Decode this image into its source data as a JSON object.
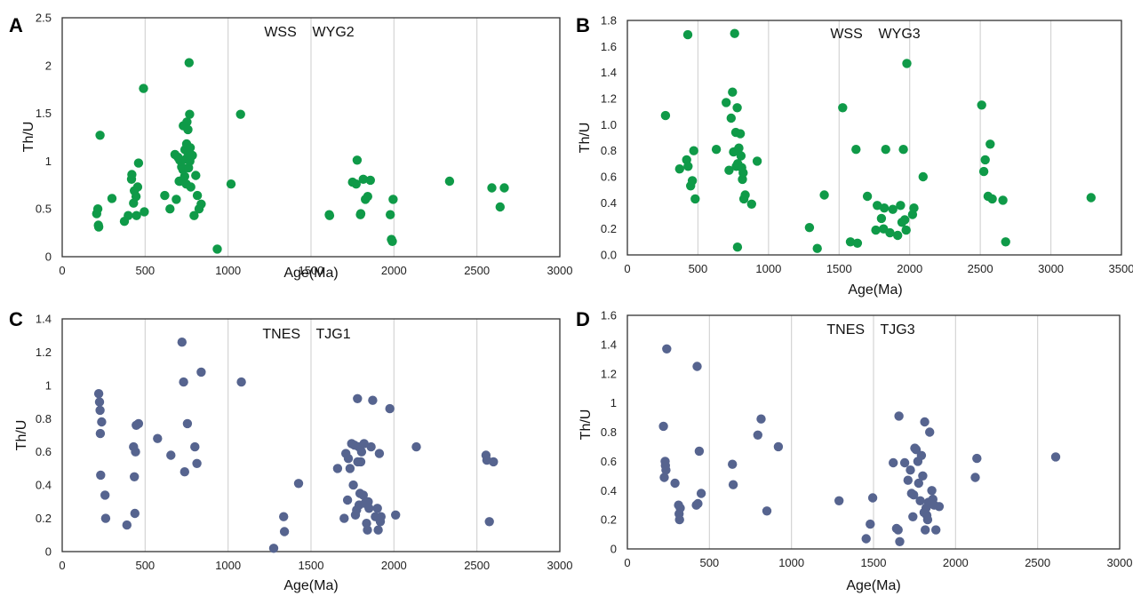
{
  "panels": [
    {
      "letter": "A"
    },
    {
      "letter": "B"
    },
    {
      "letter": "C"
    },
    {
      "letter": "D"
    }
  ],
  "chart_data": [
    {
      "type": "scatter",
      "title": "WSS    WYG2",
      "xlabel": "Age(Ma)",
      "ylabel": "Th/U",
      "xlim": [
        0,
        3000
      ],
      "ylim": [
        0,
        2.5
      ],
      "xticks": [
        0,
        500,
        1000,
        1500,
        2000,
        2500,
        3000
      ],
      "yticks": [
        0,
        0.5,
        1,
        1.5,
        2,
        2.5
      ],
      "ytick_labels": [
        "0",
        "0.5",
        "1",
        "1.5",
        "2",
        "2.5"
      ],
      "grid": "vertical",
      "color": "#0f9a48",
      "points": [
        [
          208,
          0.45
        ],
        [
          215,
          0.5
        ],
        [
          218,
          0.33
        ],
        [
          220,
          0.31
        ],
        [
          228,
          1.27
        ],
        [
          300,
          0.61
        ],
        [
          375,
          0.37
        ],
        [
          398,
          0.43
        ],
        [
          418,
          0.81
        ],
        [
          420,
          0.86
        ],
        [
          430,
          0.56
        ],
        [
          435,
          0.69
        ],
        [
          445,
          0.63
        ],
        [
          448,
          0.43
        ],
        [
          455,
          0.73
        ],
        [
          460,
          0.98
        ],
        [
          490,
          1.76
        ],
        [
          495,
          0.47
        ],
        [
          618,
          0.64
        ],
        [
          650,
          0.5
        ],
        [
          680,
          1.07
        ],
        [
          688,
          0.6
        ],
        [
          698,
          1.04
        ],
        [
          705,
          0.79
        ],
        [
          708,
          1.01
        ],
        [
          710,
          0.79
        ],
        [
          720,
          0.94
        ],
        [
          728,
          0.91
        ],
        [
          730,
          1.37
        ],
        [
          738,
          0.84
        ],
        [
          740,
          1.12
        ],
        [
          745,
          1.02
        ],
        [
          748,
          0.76
        ],
        [
          750,
          1.18
        ],
        [
          752,
          1.41
        ],
        [
          758,
          1.33
        ],
        [
          760,
          1.08
        ],
        [
          762,
          0.93
        ],
        [
          765,
          2.03
        ],
        [
          768,
          1.49
        ],
        [
          770,
          1.0
        ],
        [
          772,
          1.14
        ],
        [
          775,
          0.73
        ],
        [
          778,
          1.05
        ],
        [
          785,
          1.06
        ],
        [
          795,
          0.43
        ],
        [
          805,
          0.85
        ],
        [
          815,
          0.64
        ],
        [
          825,
          0.5
        ],
        [
          838,
          0.55
        ],
        [
          935,
          0.08
        ],
        [
          1018,
          0.76
        ],
        [
          1075,
          1.49
        ],
        [
          1610,
          0.44
        ],
        [
          1612,
          0.43
        ],
        [
          1750,
          0.78
        ],
        [
          1772,
          0.76
        ],
        [
          1778,
          1.01
        ],
        [
          1798,
          0.44
        ],
        [
          1800,
          0.45
        ],
        [
          1815,
          0.81
        ],
        [
          1828,
          0.6
        ],
        [
          1842,
          0.63
        ],
        [
          1858,
          0.8
        ],
        [
          1978,
          0.44
        ],
        [
          1985,
          0.18
        ],
        [
          1990,
          0.16
        ],
        [
          1995,
          0.6
        ],
        [
          2335,
          0.79
        ],
        [
          2590,
          0.72
        ],
        [
          2640,
          0.52
        ],
        [
          2665,
          0.72
        ]
      ]
    },
    {
      "type": "scatter",
      "title": "WSS    WYG3",
      "xlabel": "Age(Ma)",
      "ylabel": "Th/U",
      "xlim": [
        0,
        3500
      ],
      "ylim": [
        0,
        1.8
      ],
      "xticks": [
        0,
        500,
        1000,
        1500,
        2000,
        2500,
        3000,
        3500
      ],
      "yticks": [
        0,
        0.2,
        0.4,
        0.6,
        0.8,
        1.0,
        1.2,
        1.4,
        1.6,
        1.8
      ],
      "ytick_labels": [
        "0.0",
        "0.2",
        "0.4",
        "0.6",
        "0.8",
        "1.0",
        "1.2",
        "1.4",
        "1.6",
        "1.8"
      ],
      "grid": "vertical",
      "color": "#0f9a48",
      "points": [
        [
          270,
          1.07
        ],
        [
          370,
          0.66
        ],
        [
          420,
          0.73
        ],
        [
          428,
          1.69
        ],
        [
          430,
          0.68
        ],
        [
          448,
          0.53
        ],
        [
          460,
          0.57
        ],
        [
          470,
          0.8
        ],
        [
          480,
          0.43
        ],
        [
          630,
          0.81
        ],
        [
          700,
          1.17
        ],
        [
          720,
          0.65
        ],
        [
          735,
          1.05
        ],
        [
          745,
          1.25
        ],
        [
          752,
          0.79
        ],
        [
          760,
          1.7
        ],
        [
          768,
          0.94
        ],
        [
          772,
          0.68
        ],
        [
          776,
          0.8
        ],
        [
          778,
          1.13
        ],
        [
          780,
          0.06
        ],
        [
          782,
          0.7
        ],
        [
          790,
          0.82
        ],
        [
          800,
          0.93
        ],
        [
          805,
          0.76
        ],
        [
          810,
          0.67
        ],
        [
          815,
          0.58
        ],
        [
          820,
          0.63
        ],
        [
          825,
          0.43
        ],
        [
          835,
          0.46
        ],
        [
          880,
          0.39
        ],
        [
          920,
          0.72
        ],
        [
          1290,
          0.21
        ],
        [
          1345,
          0.05
        ],
        [
          1395,
          0.46
        ],
        [
          1525,
          1.13
        ],
        [
          1580,
          0.1
        ],
        [
          1620,
          0.81
        ],
        [
          1630,
          0.09
        ],
        [
          1700,
          0.45
        ],
        [
          1760,
          0.19
        ],
        [
          1770,
          0.38
        ],
        [
          1800,
          0.28
        ],
        [
          1815,
          0.2
        ],
        [
          1820,
          0.36
        ],
        [
          1830,
          0.81
        ],
        [
          1860,
          0.17
        ],
        [
          1880,
          0.35
        ],
        [
          1915,
          0.15
        ],
        [
          1935,
          0.38
        ],
        [
          1945,
          0.25
        ],
        [
          1955,
          0.81
        ],
        [
          1965,
          0.27
        ],
        [
          1975,
          0.19
        ],
        [
          1980,
          1.47
        ],
        [
          2020,
          0.31
        ],
        [
          2030,
          0.36
        ],
        [
          2095,
          0.6
        ],
        [
          2510,
          1.15
        ],
        [
          2525,
          0.64
        ],
        [
          2535,
          0.73
        ],
        [
          2555,
          0.45
        ],
        [
          2570,
          0.85
        ],
        [
          2585,
          0.43
        ],
        [
          2660,
          0.42
        ],
        [
          2680,
          0.1
        ],
        [
          3285,
          0.44
        ]
      ]
    },
    {
      "type": "scatter",
      "title": "TNES    TJG1",
      "xlabel": "Age(Ma)",
      "ylabel": "Th/U",
      "xlim": [
        0,
        3000
      ],
      "ylim": [
        0,
        1.4
      ],
      "xticks": [
        0,
        500,
        1000,
        1500,
        2000,
        2500,
        3000
      ],
      "yticks": [
        0,
        0.2,
        0.4,
        0.6,
        0.8,
        1,
        1.2,
        1.4
      ],
      "ytick_labels": [
        "0",
        "0.2",
        "0.4",
        "0.6",
        "0.8",
        "1",
        "1.2",
        "1.4"
      ],
      "grid": "vertical",
      "color": "#56648f",
      "points": [
        [
          220,
          0.95
        ],
        [
          225,
          0.9
        ],
        [
          228,
          0.85
        ],
        [
          230,
          0.71
        ],
        [
          232,
          0.46
        ],
        [
          238,
          0.78
        ],
        [
          258,
          0.34
        ],
        [
          262,
          0.2
        ],
        [
          390,
          0.16
        ],
        [
          430,
          0.63
        ],
        [
          435,
          0.45
        ],
        [
          438,
          0.23
        ],
        [
          442,
          0.6
        ],
        [
          446,
          0.76
        ],
        [
          460,
          0.77
        ],
        [
          575,
          0.68
        ],
        [
          655,
          0.58
        ],
        [
          722,
          1.26
        ],
        [
          732,
          1.02
        ],
        [
          738,
          0.48
        ],
        [
          755,
          0.77
        ],
        [
          800,
          0.63
        ],
        [
          812,
          0.53
        ],
        [
          838,
          1.08
        ],
        [
          1080,
          1.02
        ],
        [
          1275,
          0.02
        ],
        [
          1335,
          0.21
        ],
        [
          1340,
          0.12
        ],
        [
          1425,
          0.41
        ],
        [
          1660,
          0.5
        ],
        [
          1700,
          0.2
        ],
        [
          1710,
          0.59
        ],
        [
          1720,
          0.31
        ],
        [
          1725,
          0.56
        ],
        [
          1735,
          0.5
        ],
        [
          1745,
          0.65
        ],
        [
          1755,
          0.4
        ],
        [
          1762,
          0.64
        ],
        [
          1768,
          0.22
        ],
        [
          1775,
          0.25
        ],
        [
          1780,
          0.92
        ],
        [
          1782,
          0.54
        ],
        [
          1788,
          0.63
        ],
        [
          1790,
          0.28
        ],
        [
          1795,
          0.35
        ],
        [
          1800,
          0.54
        ],
        [
          1805,
          0.6
        ],
        [
          1815,
          0.34
        ],
        [
          1820,
          0.65
        ],
        [
          1825,
          0.29
        ],
        [
          1835,
          0.17
        ],
        [
          1840,
          0.13
        ],
        [
          1845,
          0.3
        ],
        [
          1850,
          0.26
        ],
        [
          1862,
          0.63
        ],
        [
          1872,
          0.91
        ],
        [
          1888,
          0.21
        ],
        [
          1900,
          0.26
        ],
        [
          1905,
          0.13
        ],
        [
          1912,
          0.59
        ],
        [
          1918,
          0.18
        ],
        [
          1922,
          0.21
        ],
        [
          1975,
          0.86
        ],
        [
          2010,
          0.22
        ],
        [
          2135,
          0.63
        ],
        [
          2555,
          0.58
        ],
        [
          2560,
          0.55
        ],
        [
          2575,
          0.18
        ],
        [
          2600,
          0.54
        ]
      ]
    },
    {
      "type": "scatter",
      "title": "TNES    TJG3",
      "xlabel": "Age(Ma)",
      "ylabel": "Th/U",
      "xlim": [
        0,
        3000
      ],
      "ylim": [
        0,
        1.6
      ],
      "xticks": [
        0,
        500,
        1000,
        1500,
        2000,
        2500,
        3000
      ],
      "yticks": [
        0,
        0.2,
        0.4,
        0.6,
        0.8,
        1,
        1.2,
        1.4,
        1.6
      ],
      "ytick_labels": [
        "0",
        "0.2",
        "0.4",
        "0.6",
        "0.8",
        "1",
        "1.2",
        "1.4",
        "1.6"
      ],
      "grid": "vertical",
      "color": "#56648f",
      "points": [
        [
          220,
          0.84
        ],
        [
          225,
          0.49
        ],
        [
          230,
          0.6
        ],
        [
          232,
          0.57
        ],
        [
          235,
          0.54
        ],
        [
          240,
          1.37
        ],
        [
          290,
          0.45
        ],
        [
          312,
          0.3
        ],
        [
          315,
          0.24
        ],
        [
          318,
          0.2
        ],
        [
          322,
          0.28
        ],
        [
          420,
          0.3
        ],
        [
          425,
          1.25
        ],
        [
          430,
          0.31
        ],
        [
          438,
          0.67
        ],
        [
          450,
          0.38
        ],
        [
          640,
          0.58
        ],
        [
          645,
          0.44
        ],
        [
          795,
          0.78
        ],
        [
          815,
          0.89
        ],
        [
          850,
          0.26
        ],
        [
          920,
          0.7
        ],
        [
          1290,
          0.33
        ],
        [
          1455,
          0.07
        ],
        [
          1480,
          0.17
        ],
        [
          1495,
          0.35
        ],
        [
          1620,
          0.59
        ],
        [
          1640,
          0.14
        ],
        [
          1650,
          0.13
        ],
        [
          1655,
          0.91
        ],
        [
          1660,
          0.05
        ],
        [
          1690,
          0.59
        ],
        [
          1710,
          0.47
        ],
        [
          1725,
          0.54
        ],
        [
          1732,
          0.38
        ],
        [
          1740,
          0.22
        ],
        [
          1745,
          0.37
        ],
        [
          1752,
          0.69
        ],
        [
          1760,
          0.68
        ],
        [
          1770,
          0.6
        ],
        [
          1775,
          0.45
        ],
        [
          1785,
          0.33
        ],
        [
          1792,
          0.64
        ],
        [
          1800,
          0.5
        ],
        [
          1808,
          0.25
        ],
        [
          1812,
          0.87
        ],
        [
          1815,
          0.13
        ],
        [
          1820,
          0.28
        ],
        [
          1825,
          0.23
        ],
        [
          1830,
          0.2
        ],
        [
          1835,
          0.32
        ],
        [
          1842,
          0.8
        ],
        [
          1850,
          0.31
        ],
        [
          1855,
          0.4
        ],
        [
          1862,
          0.34
        ],
        [
          1870,
          0.3
        ],
        [
          1880,
          0.13
        ],
        [
          1900,
          0.29
        ],
        [
          2120,
          0.49
        ],
        [
          2130,
          0.62
        ],
        [
          2610,
          0.63
        ]
      ]
    }
  ]
}
